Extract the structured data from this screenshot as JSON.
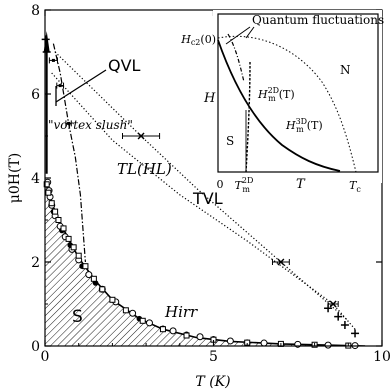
{
  "chart_data": {
    "type": "scatter",
    "title": "",
    "xlabel": "T (K)",
    "ylabel": "μ0H(T)",
    "xlim": [
      0,
      10
    ],
    "ylim": [
      0,
      8
    ],
    "x_ticks": [
      "0",
      "5",
      "10"
    ],
    "y_ticks": [
      "0",
      "2",
      "4",
      "6",
      "8"
    ],
    "grid": false,
    "annotations": {
      "qvl": "QVL",
      "tvl": "TVL",
      "s": "S",
      "vortex_slush": "\"vortex slush\"",
      "tl": "TL(HL)",
      "hirr": "Hirr"
    },
    "series": [
      {
        "name": "open circles",
        "marker": "open-circle",
        "x": [
          0.08,
          0.12,
          0.15,
          0.2,
          0.3,
          0.45,
          0.6,
          0.8,
          1.0,
          1.3,
          1.7,
          2.1,
          2.6,
          3.1,
          3.8,
          4.6,
          5.5,
          6.5,
          7.5,
          8.4,
          9.2
        ],
        "y": [
          3.9,
          3.7,
          3.55,
          3.35,
          3.1,
          2.85,
          2.6,
          2.3,
          2.05,
          1.7,
          1.35,
          1.05,
          0.78,
          0.55,
          0.36,
          0.22,
          0.12,
          0.07,
          0.04,
          0.02,
          0.01
        ]
      },
      {
        "name": "filled circles",
        "marker": "filled-circle",
        "x": [
          0.25,
          0.5,
          0.75,
          1.1,
          1.5,
          2.0,
          2.8,
          3.5,
          4.2,
          5.0,
          6.0,
          7.0,
          8.0,
          9.0
        ],
        "y": [
          3.2,
          2.75,
          2.4,
          1.9,
          1.5,
          1.1,
          0.65,
          0.42,
          0.28,
          0.17,
          0.09,
          0.05,
          0.03,
          0.015
        ]
      },
      {
        "name": "squares",
        "marker": "square",
        "x": [
          0.05,
          0.1,
          0.2,
          0.3,
          0.4,
          0.55,
          0.7,
          0.85,
          1.0,
          1.2,
          1.45,
          1.7,
          2.0,
          2.4,
          2.9,
          3.5,
          4.2,
          5.0,
          6.0,
          7.0,
          8.0,
          9.0
        ],
        "y": [
          3.85,
          3.65,
          3.4,
          3.2,
          3.0,
          2.8,
          2.55,
          2.35,
          2.15,
          1.9,
          1.6,
          1.35,
          1.1,
          0.85,
          0.6,
          0.4,
          0.25,
          0.15,
          0.08,
          0.05,
          0.03,
          0.01
        ]
      },
      {
        "name": "plus",
        "marker": "plus",
        "x": [
          0.02,
          0.05,
          8.4,
          8.7,
          8.9,
          9.2
        ],
        "y": [
          7.3,
          7.0,
          0.9,
          0.7,
          0.5,
          0.3
        ]
      },
      {
        "name": "crosses with error bars",
        "marker": "x",
        "x": [
          2.85,
          7.0,
          8.55
        ],
        "y": [
          5.0,
          2.0,
          1.0
        ],
        "xerr": [
          0.55,
          0.25,
          0.15
        ]
      },
      {
        "name": "vortex slush points",
        "marker": "bar",
        "x": [
          0.25,
          0.45,
          0.7
        ],
        "y": [
          6.8,
          6.2,
          5.3
        ],
        "xerr": [
          0.12,
          0.1,
          0.08
        ]
      }
    ],
    "lines": [
      {
        "name": "Hirr",
        "style": "solid",
        "x": [
          0,
          0.2,
          0.5,
          1.0,
          1.5,
          2.0,
          2.8,
          3.5,
          4.5,
          5.5,
          7.0,
          8.5,
          9.5
        ],
        "y": [
          3.95,
          3.4,
          2.85,
          2.1,
          1.55,
          1.1,
          0.65,
          0.4,
          0.2,
          0.11,
          0.05,
          0.02,
          0.0
        ]
      },
      {
        "name": "TL(HL)",
        "style": "dash-dot",
        "x": [
          0.25,
          0.45,
          0.7,
          0.9,
          1.05,
          1.2
        ],
        "y": [
          7.2,
          6.5,
          5.3,
          4.5,
          3.6,
          2.0
        ]
      },
      {
        "name": "upper dotted",
        "style": "dotted",
        "x": [
          0.3,
          2.85,
          4.5,
          7.0,
          9.0
        ],
        "y": [
          7.0,
          5.0,
          3.75,
          2.0,
          0.6
        ]
      },
      {
        "name": "lower dotted",
        "style": "dotted",
        "x": [
          0.2,
          2.0,
          4.0,
          6.0,
          8.55,
          9.2
        ],
        "y": [
          6.5,
          4.9,
          3.6,
          2.5,
          1.0,
          0.4
        ]
      }
    ],
    "inset": {
      "title": "Quantum fluctuations",
      "xlabel": "T",
      "ylabel": "H",
      "x_ticks": [
        "0",
        "T_m^2D",
        "T_c"
      ],
      "y_tick": "Hc2(0)",
      "region_s": "S",
      "region_n": "N",
      "label_2d": "Hm2D(T)",
      "label_3d": "Hm3D(T)",
      "sub_2d": "2D",
      "sub_3d": "3D",
      "sub_c2": "c2",
      "sub_m": "m",
      "sub_c": "c",
      "paren_0": "(0)",
      "paren_t": "(T)"
    }
  }
}
